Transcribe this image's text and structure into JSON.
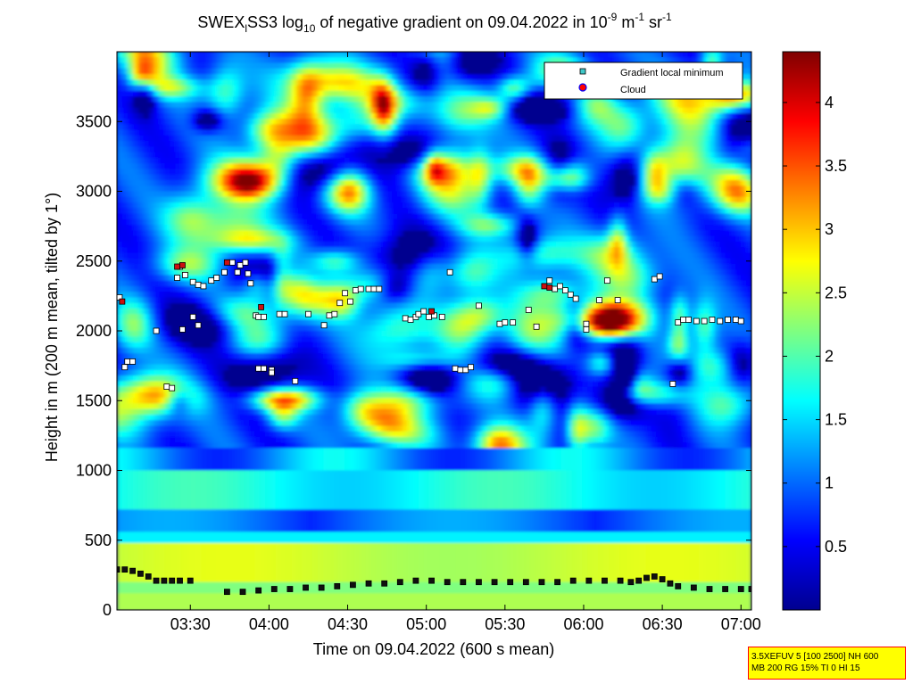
{
  "chart_data": {
    "type": "heatmap",
    "title": {
      "main": "SWEX",
      "sub1": "l",
      "mid": "SS3 log",
      "sub2": "10",
      "rest": " of negative gradient on 09.04.2022 in 10",
      "sup1": "-9",
      "unit1": " m",
      "sup2": "-1",
      "unit2": " sr",
      "sup3": "-1"
    },
    "xlabel": "Time on 09.04.2022 (600 s mean)",
    "ylabel": "Height in m (200 m mean, tilted by 1°)",
    "x_ticks": [
      "03:30",
      "04:00",
      "04:30",
      "05:00",
      "05:30",
      "06:00",
      "06:30",
      "07:00"
    ],
    "y_ticks": [
      "0",
      "500",
      "1000",
      "1500",
      "2000",
      "2500",
      "3000",
      "3500"
    ],
    "ylim": [
      0,
      4000
    ],
    "xlim": [
      "03:02",
      "07:04"
    ],
    "colorbar": {
      "ticks": [
        "0.5",
        "1",
        "1.5",
        "2",
        "2.5",
        "3",
        "3.5",
        "4"
      ],
      "range": [
        0,
        4.4
      ],
      "colormap": "jet"
    },
    "legend": {
      "placement": "top-right",
      "entries": [
        {
          "label": "Gradient local minimum",
          "marker": "square",
          "color": "#40c8c8"
        },
        {
          "label": "Cloud",
          "marker": "circle",
          "color": "#ff0000",
          "edge": "#0000ff"
        }
      ]
    },
    "series": [
      {
        "name": "Gradient local minimum",
        "points": [
          [
            "03:03",
            2240
          ],
          [
            "03:06",
            1780
          ],
          [
            "03:05",
            1740
          ],
          [
            "03:08",
            1780
          ],
          [
            "03:17",
            2000
          ],
          [
            "03:21",
            1600
          ],
          [
            "03:23",
            1590
          ],
          [
            "03:25",
            2380
          ],
          [
            "03:26",
            2460
          ],
          [
            "03:28",
            2400
          ],
          [
            "03:27",
            2010
          ],
          [
            "03:31",
            2100
          ],
          [
            "03:31",
            2350
          ],
          [
            "03:33",
            2330
          ],
          [
            "03:35",
            2320
          ],
          [
            "03:38",
            2360
          ],
          [
            "03:40",
            2380
          ],
          [
            "03:33",
            2040
          ],
          [
            "03:43",
            2420
          ],
          [
            "03:46",
            2490
          ],
          [
            "03:48",
            2420
          ],
          [
            "03:49",
            2470
          ],
          [
            "03:51",
            2490
          ],
          [
            "03:52",
            2410
          ],
          [
            "03:53",
            2340
          ],
          [
            "03:55",
            2110
          ],
          [
            "03:56",
            2100
          ],
          [
            "03:58",
            2100
          ],
          [
            "03:56",
            1730
          ],
          [
            "03:58",
            1730
          ],
          [
            "04:01",
            1720
          ],
          [
            "04:01",
            1700
          ],
          [
            "04:04",
            2120
          ],
          [
            "04:06",
            2120
          ],
          [
            "04:10",
            1640
          ],
          [
            "04:15",
            2120
          ],
          [
            "04:21",
            2040
          ],
          [
            "04:23",
            2110
          ],
          [
            "04:25",
            2120
          ],
          [
            "04:27",
            2200
          ],
          [
            "04:29",
            2270
          ],
          [
            "04:31",
            2210
          ],
          [
            "04:33",
            2290
          ],
          [
            "04:35",
            2300
          ],
          [
            "04:38",
            2300
          ],
          [
            "04:40",
            2300
          ],
          [
            "04:42",
            2300
          ],
          [
            "04:52",
            2090
          ],
          [
            "04:54",
            2080
          ],
          [
            "04:56",
            2100
          ],
          [
            "04:57",
            2120
          ],
          [
            "04:59",
            2140
          ],
          [
            "05:01",
            2100
          ],
          [
            "05:03",
            2110
          ],
          [
            "05:06",
            2100
          ],
          [
            "05:09",
            2420
          ],
          [
            "05:11",
            1730
          ],
          [
            "05:13",
            1720
          ],
          [
            "05:15",
            1720
          ],
          [
            "05:17",
            1740
          ],
          [
            "05:20",
            2180
          ],
          [
            "05:28",
            2050
          ],
          [
            "05:30",
            2060
          ],
          [
            "05:33",
            2060
          ],
          [
            "05:39",
            2150
          ],
          [
            "05:42",
            2030
          ],
          [
            "05:47",
            2360
          ],
          [
            "05:49",
            2300
          ],
          [
            "05:51",
            2320
          ],
          [
            "05:53",
            2290
          ],
          [
            "05:55",
            2260
          ],
          [
            "05:57",
            2230
          ],
          [
            "06:01",
            2050
          ],
          [
            "06:01",
            2010
          ],
          [
            "06:06",
            2220
          ],
          [
            "06:09",
            2360
          ],
          [
            "06:13",
            2220
          ],
          [
            "06:27",
            2370
          ],
          [
            "06:29",
            2390
          ],
          [
            "06:34",
            1620
          ],
          [
            "06:36",
            2060
          ],
          [
            "06:38",
            2080
          ],
          [
            "06:40",
            2080
          ],
          [
            "06:43",
            2070
          ],
          [
            "06:46",
            2070
          ],
          [
            "06:49",
            2080
          ],
          [
            "06:52",
            2070
          ],
          [
            "06:55",
            2080
          ],
          [
            "06:58",
            2080
          ],
          [
            "07:00",
            2070
          ],
          [
            "03:02",
            290
          ],
          [
            "03:05",
            290
          ],
          [
            "03:08",
            280
          ],
          [
            "03:11",
            260
          ],
          [
            "03:14",
            240
          ],
          [
            "03:17",
            210
          ],
          [
            "03:20",
            210
          ],
          [
            "03:23",
            210
          ],
          [
            "03:26",
            210
          ],
          [
            "03:30",
            210
          ],
          [
            "03:44",
            130
          ],
          [
            "03:50",
            130
          ],
          [
            "03:56",
            140
          ],
          [
            "04:02",
            150
          ],
          [
            "04:08",
            150
          ],
          [
            "04:14",
            160
          ],
          [
            "04:20",
            160
          ],
          [
            "04:26",
            170
          ],
          [
            "04:32",
            180
          ],
          [
            "04:38",
            190
          ],
          [
            "04:44",
            190
          ],
          [
            "04:50",
            200
          ],
          [
            "04:56",
            210
          ],
          [
            "05:02",
            210
          ],
          [
            "05:08",
            200
          ],
          [
            "05:14",
            200
          ],
          [
            "05:20",
            200
          ],
          [
            "05:26",
            200
          ],
          [
            "05:32",
            200
          ],
          [
            "05:38",
            200
          ],
          [
            "05:44",
            200
          ],
          [
            "05:50",
            200
          ],
          [
            "05:56",
            210
          ],
          [
            "06:02",
            210
          ],
          [
            "06:08",
            210
          ],
          [
            "06:14",
            210
          ],
          [
            "06:18",
            200
          ],
          [
            "06:21",
            210
          ],
          [
            "06:24",
            230
          ],
          [
            "06:27",
            240
          ],
          [
            "06:30",
            220
          ],
          [
            "06:33",
            190
          ],
          [
            "06:36",
            170
          ],
          [
            "06:42",
            160
          ],
          [
            "06:48",
            150
          ],
          [
            "06:54",
            150
          ],
          [
            "07:00",
            150
          ],
          [
            "07:04",
            150
          ]
        ]
      },
      {
        "name": "Cloud",
        "points": [
          [
            "03:04",
            2210
          ],
          [
            "03:25",
            2460
          ],
          [
            "03:27",
            2470
          ],
          [
            "03:44",
            2490
          ],
          [
            "03:57",
            2170
          ],
          [
            "05:02",
            2140
          ],
          [
            "05:45",
            2320
          ],
          [
            "05:47",
            2310
          ]
        ]
      }
    ],
    "grid": false
  },
  "info_box": {
    "line1": "3.5XEFUV 5 [100 2500] NH 600",
    "line2": "MB 200 RG 15% TI 0 HI 15"
  }
}
